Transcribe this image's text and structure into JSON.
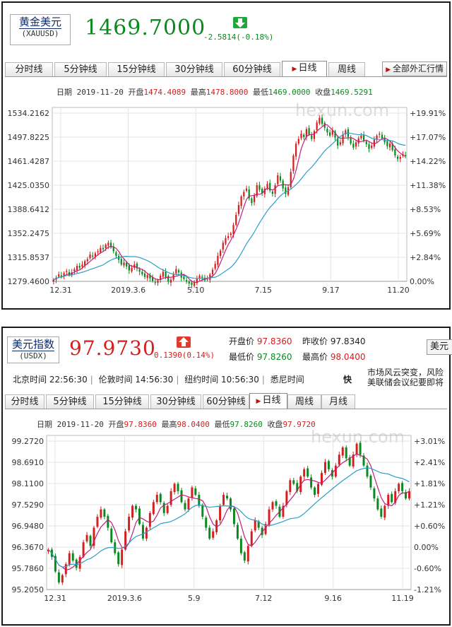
{
  "gold": {
    "name": "黄金美元",
    "code": "(XAUUSD)",
    "price": "1469.7000",
    "change": "-2.5814(-0.18%)",
    "tabs": [
      "分时线",
      "5分钟线",
      "15分钟线",
      "30分钟线",
      "60分钟线",
      "日线",
      "周线"
    ],
    "active_tab": "日线",
    "all_button": "全部外汇行情",
    "ohlc": {
      "date_label": "日期",
      "date": "2019-11-20",
      "open_label": "开盘",
      "open": "1474.4089",
      "high_label": "最高",
      "high": "1478.8000",
      "low_label": "最低",
      "low": "1469.0000",
      "close_label": "收盘",
      "close": "1469.5291"
    },
    "watermark": "hexun.com"
  },
  "usd": {
    "name": "美元指数",
    "code": "(USDX)",
    "price": "97.9730",
    "change": "0.1390(0.14%)",
    "info": {
      "open_label": "开盘价",
      "open": "97.8360",
      "prev_label": "昨收价",
      "prev": "97.8340",
      "low_label": "最低价",
      "low": "97.8260",
      "high_label": "最高价",
      "high": "98.0400"
    },
    "cut_button": "美元",
    "clock": {
      "beijing": "北京时间 22:56:30",
      "london": "伦敦时间 14:56:30",
      "newyork": "纽约时间 10:56:30",
      "sydney": "悉尼时间",
      "fast": "快"
    },
    "news": [
      "市场风云突变，风险",
      "美联储会议纪要即将"
    ],
    "tabs": [
      "分时线",
      "5分钟线",
      "15分钟线",
      "30分钟线",
      "60分钟线",
      "日线",
      "周线",
      "月线"
    ],
    "active_tab": "日线",
    "ohlc": {
      "date_label": "日期",
      "date": "2019-11-20",
      "open_label": "开盘",
      "open": "97.8360",
      "high_label": "最高",
      "high": "98.0400",
      "low_label": "最低",
      "low": "97.8260",
      "close_label": "收盘",
      "close": "97.9720"
    },
    "watermark": "hexun.com"
  },
  "colors": {
    "up": "#d61e1e",
    "down": "#0a8a1e",
    "ma_short": "#c21d7a",
    "ma_long": "#2a9fc9"
  },
  "chart_data": [
    {
      "type": "candlestick",
      "title": "黄金美元 日线",
      "x_ticks": [
        "12.31",
        "2019.3.6",
        "5.10",
        "7.15",
        "9.17",
        "11.20"
      ],
      "y_ticks_left": [
        "1534.2162",
        "1497.8225",
        "1461.4287",
        "1425.0350",
        "1388.6412",
        "1352.2475",
        "1315.8537",
        "1279.4600"
      ],
      "y_ticks_right": [
        "+19.91%",
        "+17.07%",
        "+14.22%",
        "+11.38%",
        "+8.53%",
        "+5.69%",
        "+2.84%",
        "0.00%"
      ],
      "ylim": [
        1279.46,
        1534.2162
      ],
      "grid": true,
      "closes": [
        1282,
        1285,
        1290,
        1287,
        1292,
        1295,
        1289,
        1293,
        1298,
        1303,
        1300,
        1305,
        1310,
        1313,
        1320,
        1317,
        1322,
        1325,
        1330,
        1328,
        1335,
        1338,
        1331,
        1325,
        1318,
        1312,
        1305,
        1308,
        1302,
        1296,
        1300,
        1305,
        1299,
        1294,
        1290,
        1286,
        1289,
        1284,
        1280,
        1277,
        1281,
        1288,
        1294,
        1286,
        1279,
        1282,
        1290,
        1298,
        1293,
        1285,
        1283,
        1279,
        1276,
        1274,
        1277,
        1283,
        1288,
        1285,
        1281,
        1283,
        1290,
        1297,
        1306,
        1318,
        1326,
        1338,
        1345,
        1348,
        1352,
        1365,
        1380,
        1395,
        1408,
        1415,
        1420,
        1405,
        1398,
        1410,
        1425,
        1418,
        1413,
        1420,
        1427,
        1417,
        1412,
        1425,
        1440,
        1432,
        1420,
        1412,
        1422,
        1445,
        1470,
        1488,
        1495,
        1503,
        1498,
        1510,
        1502,
        1495,
        1507,
        1520,
        1527,
        1518,
        1512,
        1505,
        1500,
        1508,
        1497,
        1485,
        1490,
        1502,
        1508,
        1498,
        1488,
        1482,
        1490,
        1496,
        1500,
        1493,
        1487,
        1480,
        1485,
        1494,
        1500,
        1503,
        1496,
        1490,
        1484,
        1488,
        1478,
        1470,
        1465,
        1468,
        1472,
        1469
      ]
    },
    {
      "type": "candlestick",
      "title": "美元指数 日线",
      "x_ticks": [
        "12.31",
        "2019.3.6",
        "5.9",
        "7.12",
        "9.16",
        "11.19"
      ],
      "y_ticks_left": [
        "99.2720",
        "98.6910",
        "98.1100",
        "97.5290",
        "96.9480",
        "96.3670",
        "95.7860",
        "95.2050"
      ],
      "y_ticks_right": [
        "+3.01%",
        "+2.41%",
        "+1.81%",
        "+1.21%",
        "+0.60%",
        "0.00%",
        "-0.60%",
        "-1.21%"
      ],
      "ylim": [
        95.205,
        99.272
      ],
      "grid": true,
      "closes": [
        96.3,
        96.1,
        95.7,
        95.4,
        95.6,
        95.9,
        96.2,
        96.0,
        95.8,
        96.1,
        96.5,
        96.7,
        96.4,
        96.9,
        97.2,
        97.4,
        97.2,
        96.9,
        96.5,
        96.2,
        95.9,
        96.3,
        96.8,
        97.2,
        97.5,
        97.4,
        97.0,
        96.6,
        96.9,
        97.3,
        97.6,
        97.8,
        97.6,
        97.3,
        97.5,
        97.9,
        98.1,
        97.9,
        97.6,
        97.4,
        97.7,
        98.0,
        97.8,
        97.5,
        97.2,
        96.9,
        96.6,
        96.8,
        97.1,
        97.5,
        97.8,
        97.7,
        97.4,
        97.0,
        96.6,
        96.2,
        96.0,
        96.4,
        96.8,
        97.1,
        96.9,
        96.7,
        97.0,
        97.4,
        97.6,
        97.5,
        97.2,
        97.5,
        97.9,
        98.2,
        98.1,
        97.9,
        98.3,
        98.5,
        98.3,
        98.0,
        97.8,
        98.1,
        98.4,
        98.7,
        98.5,
        98.3,
        98.6,
        98.9,
        99.1,
        98.8,
        98.6,
        98.9,
        99.2,
        98.9,
        98.6,
        98.3,
        98.0,
        97.7,
        97.4,
        97.2,
        97.5,
        97.8,
        97.6,
        97.9,
        98.1,
        97.9,
        97.7,
        97.9
      ]
    }
  ]
}
